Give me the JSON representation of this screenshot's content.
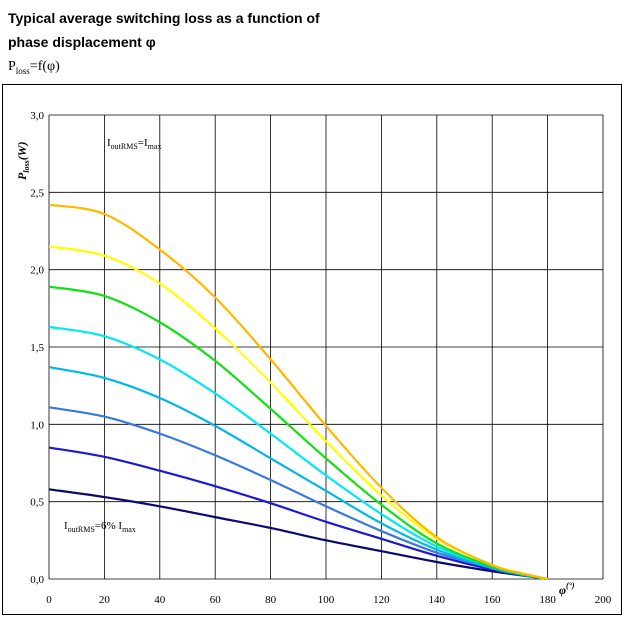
{
  "title_line1": "Typical average switching loss as a function of",
  "title_line2": "phase displacement φ",
  "formula": {
    "main": "P",
    "sub": "loss",
    "rest": "=f(φ)"
  },
  "chart_data": {
    "type": "line",
    "ylabel": {
      "main": "P",
      "sub": "loss",
      "rest": "(W)"
    },
    "xlabel": {
      "main": "φ",
      "sup": "(°)"
    },
    "xlim": [
      0,
      200
    ],
    "ylim": [
      0,
      3
    ],
    "xticks": [
      "0",
      "20",
      "40",
      "60",
      "80",
      "100",
      "120",
      "140",
      "160",
      "180",
      "200"
    ],
    "yticks": [
      "0,0",
      "0,5",
      "1,0",
      "1,5",
      "2,0",
      "2,5",
      "3,0"
    ],
    "grid": true,
    "annotations": [
      {
        "parts": [
          "I",
          "outRMS",
          "=I",
          "max",
          ""
        ]
      },
      {
        "parts": [
          "I",
          "outRMS",
          "=6% I",
          "max",
          ""
        ]
      }
    ],
    "x": [
      0,
      20,
      40,
      60,
      80,
      100,
      120,
      140,
      160,
      170,
      180
    ],
    "series": [
      {
        "color": "#0a0a6e",
        "values": [
          0.58,
          0.53,
          0.47,
          0.4,
          0.33,
          0.25,
          0.18,
          0.11,
          0.05,
          0.025,
          0.0
        ]
      },
      {
        "color": "#1a1ad6",
        "values": [
          0.85,
          0.79,
          0.7,
          0.6,
          0.49,
          0.37,
          0.26,
          0.15,
          0.06,
          0.03,
          0.0
        ]
      },
      {
        "color": "#3a78e0",
        "values": [
          1.11,
          1.05,
          0.94,
          0.8,
          0.64,
          0.47,
          0.31,
          0.17,
          0.07,
          0.03,
          0.0
        ]
      },
      {
        "color": "#00b8e8",
        "values": [
          1.37,
          1.3,
          1.17,
          0.99,
          0.78,
          0.57,
          0.36,
          0.19,
          0.07,
          0.03,
          0.0
        ]
      },
      {
        "color": "#00e8f0",
        "values": [
          1.63,
          1.57,
          1.42,
          1.2,
          0.94,
          0.67,
          0.42,
          0.21,
          0.08,
          0.035,
          0.0
        ]
      },
      {
        "color": "#12e012",
        "values": [
          1.89,
          1.83,
          1.66,
          1.41,
          1.1,
          0.78,
          0.48,
          0.23,
          0.08,
          0.035,
          0.0
        ]
      },
      {
        "color": "#ffff00",
        "values": [
          2.15,
          2.09,
          1.91,
          1.62,
          1.27,
          0.89,
          0.54,
          0.26,
          0.09,
          0.04,
          0.0
        ]
      },
      {
        "color": "#ffb800",
        "values": [
          2.42,
          2.36,
          2.13,
          1.82,
          1.42,
          0.99,
          0.59,
          0.27,
          0.09,
          0.04,
          0.0
        ]
      }
    ]
  }
}
